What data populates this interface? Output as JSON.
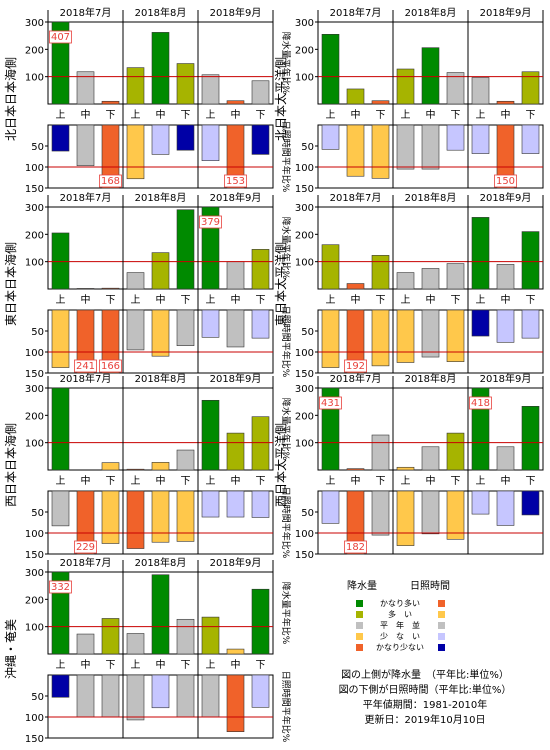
{
  "columns": [
    "上",
    "中",
    "下",
    "上",
    "中",
    "下",
    "上",
    "中",
    "下"
  ],
  "months": [
    "2018年7月",
    "2018年8月",
    "2018年9月"
  ],
  "precip_axis": {
    "ticks": [
      "300",
      "200",
      "100"
    ],
    "label": "降水量平年比%",
    "ylim": [
      0,
      300
    ],
    "normal": 100
  },
  "sun_axis": {
    "ticks": [
      "50",
      "100",
      "150"
    ],
    "label": "日照時間平年比%",
    "ylim": [
      0,
      150
    ],
    "normal": 100
  },
  "colors": {
    "precip": {
      "much_more": "#008a00",
      "more": "#a6b400",
      "normal": "#c0c0c0",
      "less": "#ffc84b",
      "much_less": "#f0622a"
    },
    "sun": {
      "much_more": "#f0622a",
      "more": "#ffc84b",
      "normal": "#c0c0c0",
      "less": "#c6c6ff",
      "much_less": "#0000a6"
    },
    "normal_line": "#c80000",
    "overflow_label": "#e8413c"
  },
  "chart_data": [
    {
      "type": "bar",
      "region": "北日本日本海側",
      "categories": [
        "7月上",
        "7月中",
        "7月下",
        "8月上",
        "8月中",
        "8月下",
        "9月上",
        "9月中",
        "9月下"
      ],
      "precipitation": [
        407,
        118,
        10,
        133,
        262,
        148,
        107,
        12,
        85
      ],
      "precipitation_class": [
        "much_more",
        "normal",
        "much_less",
        "more",
        "much_more",
        "more",
        "normal",
        "much_less",
        "normal"
      ],
      "sunshine": [
        62,
        97,
        168,
        128,
        70,
        60,
        85,
        153,
        70
      ],
      "sunshine_class": [
        "much_less",
        "normal",
        "much_more",
        "more",
        "less",
        "much_less",
        "less",
        "much_more",
        "much_less"
      ],
      "overflow_labels": {
        "precipitation": [
          "407",
          "",
          "",
          "",
          "",
          "",
          "",
          "",
          ""
        ],
        "sunshine": [
          "",
          "",
          "168",
          "",
          "",
          "",
          "",
          "153",
          ""
        ]
      }
    },
    {
      "type": "bar",
      "region": "北日本太平洋側",
      "categories": [
        "7月上",
        "7月中",
        "7月下",
        "8月上",
        "8月中",
        "8月下",
        "9月上",
        "9月中",
        "9月下"
      ],
      "precipitation": [
        255,
        55,
        12,
        128,
        206,
        115,
        97,
        10,
        118
      ],
      "precipitation_class": [
        "much_more",
        "more",
        "much_less",
        "more",
        "much_more",
        "normal",
        "normal",
        "much_less",
        "more"
      ],
      "sunshine": [
        58,
        122,
        127,
        105,
        105,
        60,
        68,
        150,
        68
      ],
      "sunshine_class": [
        "less",
        "more",
        "more",
        "normal",
        "normal",
        "less",
        "less",
        "much_more",
        "less"
      ],
      "overflow_labels": {
        "precipitation": [
          "",
          "",
          "",
          "",
          "",
          "",
          "",
          "",
          ""
        ],
        "sunshine": [
          "",
          "",
          "",
          "",
          "",
          "",
          "",
          "150",
          ""
        ]
      }
    },
    {
      "type": "bar",
      "region": "東日本日本海側",
      "categories": [
        "7月上",
        "7月中",
        "7月下",
        "8月上",
        "8月中",
        "8月下",
        "9月上",
        "9月中",
        "9月下"
      ],
      "precipitation": [
        205,
        2,
        3,
        60,
        133,
        290,
        379,
        100,
        145
      ],
      "precipitation_class": [
        "much_more",
        "much_less",
        "much_less",
        "normal",
        "more",
        "much_more",
        "much_more",
        "normal",
        "more"
      ],
      "sunshine": [
        137,
        241,
        166,
        95,
        110,
        85,
        65,
        88,
        67
      ],
      "sunshine_class": [
        "more",
        "much_more",
        "much_more",
        "normal",
        "more",
        "normal",
        "less",
        "normal",
        "less"
      ],
      "overflow_labels": {
        "precipitation": [
          "",
          "",
          "",
          "",
          "",
          "",
          "379",
          "",
          ""
        ],
        "sunshine": [
          "",
          "241",
          "166",
          "",
          "",
          "",
          "",
          "",
          ""
        ]
      }
    },
    {
      "type": "bar",
      "region": "東日本太平洋側",
      "categories": [
        "7月上",
        "7月中",
        "7月下",
        "8月上",
        "8月中",
        "8月下",
        "9月上",
        "9月中",
        "9月下"
      ],
      "precipitation": [
        162,
        20,
        123,
        60,
        75,
        93,
        262,
        90,
        210
      ],
      "precipitation_class": [
        "more",
        "much_less",
        "more",
        "normal",
        "normal",
        "normal",
        "much_more",
        "normal",
        "much_more"
      ],
      "sunshine": [
        137,
        192,
        133,
        125,
        112,
        123,
        62,
        77,
        67
      ],
      "sunshine_class": [
        "more",
        "much_more",
        "more",
        "more",
        "normal",
        "more",
        "much_less",
        "less",
        "less"
      ],
      "overflow_labels": {
        "precipitation": [
          "",
          "",
          "",
          "",
          "",
          "",
          "",
          "",
          ""
        ],
        "sunshine": [
          "",
          "192",
          "",
          "",
          "",
          "",
          "",
          "",
          ""
        ]
      }
    },
    {
      "type": "bar",
      "region": "西日本日本海側",
      "categories": [
        "7月上",
        "7月中",
        "7月下",
        "8月上",
        "8月中",
        "8月下",
        "9月上",
        "9月中",
        "9月下"
      ],
      "precipitation": [
        303,
        0,
        27,
        3,
        28,
        73,
        255,
        135,
        195
      ],
      "precipitation_class": [
        "much_more",
        "much_less",
        "less",
        "much_less",
        "less",
        "normal",
        "much_more",
        "more",
        "more"
      ],
      "sunshine": [
        83,
        229,
        125,
        137,
        122,
        120,
        62,
        62,
        63
      ],
      "sunshine_class": [
        "normal",
        "much_more",
        "more",
        "much_more",
        "more",
        "more",
        "less",
        "less",
        "less"
      ],
      "overflow_labels": {
        "precipitation": [
          "",
          "",
          "",
          "",
          "",
          "",
          "",
          "",
          ""
        ],
        "sunshine": [
          "",
          "229",
          "",
          "",
          "",
          "",
          "",
          "",
          ""
        ]
      }
    },
    {
      "type": "bar",
      "region": "西日本太平洋側",
      "categories": [
        "7月上",
        "7月中",
        "7月下",
        "8月上",
        "8月中",
        "8月下",
        "9月上",
        "9月中",
        "9月下"
      ],
      "precipitation": [
        431,
        5,
        128,
        10,
        85,
        135,
        418,
        85,
        233
      ],
      "precipitation_class": [
        "much_more",
        "much_less",
        "normal",
        "less",
        "normal",
        "more",
        "much_more",
        "normal",
        "much_more"
      ],
      "sunshine": [
        77,
        182,
        105,
        130,
        102,
        115,
        55,
        82,
        57
      ],
      "sunshine_class": [
        "less",
        "much_more",
        "normal",
        "more",
        "normal",
        "more",
        "less",
        "less",
        "much_less"
      ],
      "overflow_labels": {
        "precipitation": [
          "431",
          "",
          "",
          "",
          "",
          "",
          "418",
          "",
          ""
        ],
        "sunshine": [
          "",
          "182",
          "",
          "",
          "",
          "",
          "",
          "",
          ""
        ]
      }
    },
    {
      "type": "bar",
      "region": "沖縄・奄美",
      "categories": [
        "7月上",
        "7月中",
        "7月下",
        "8月上",
        "8月中",
        "8月下",
        "9月上",
        "9月中",
        "9月下"
      ],
      "precipitation": [
        332,
        73,
        130,
        75,
        290,
        127,
        135,
        18,
        237
      ],
      "precipitation_class": [
        "much_more",
        "normal",
        "more",
        "normal",
        "much_more",
        "normal",
        "more",
        "less",
        "much_more"
      ],
      "sunshine": [
        53,
        100,
        100,
        107,
        78,
        100,
        100,
        135,
        77
      ],
      "sunshine_class": [
        "much_less",
        "normal",
        "normal",
        "normal",
        "less",
        "normal",
        "normal",
        "much_more",
        "less"
      ],
      "overflow_labels": {
        "precipitation": [
          "332",
          "",
          "",
          "",
          "",
          "",
          "",
          "",
          ""
        ],
        "sunshine": [
          "",
          "",
          "",
          "",
          "",
          "",
          "",
          "",
          ""
        ]
      }
    }
  ],
  "legend": {
    "header_precip": "降水量",
    "header_sun": "日照時間",
    "rows": [
      {
        "label": "かなり多い",
        "precip": "much_more",
        "sun": "much_more"
      },
      {
        "label": "多　い",
        "precip": "more",
        "sun": "more"
      },
      {
        "label": "平　年　並",
        "precip": "normal",
        "sun": "normal"
      },
      {
        "label": "少　な　い",
        "precip": "less",
        "sun": "less"
      },
      {
        "label": "かなり少ない",
        "precip": "much_less",
        "sun": "much_less"
      }
    ]
  },
  "notes": {
    "line1": "図の上側が降水量　（平年比:単位%）",
    "line2": "図の下側が日照時間（平年比:単位%）",
    "line3": "平年値期間：1981-2010年",
    "line4": "更新日：2019年10月10日"
  }
}
